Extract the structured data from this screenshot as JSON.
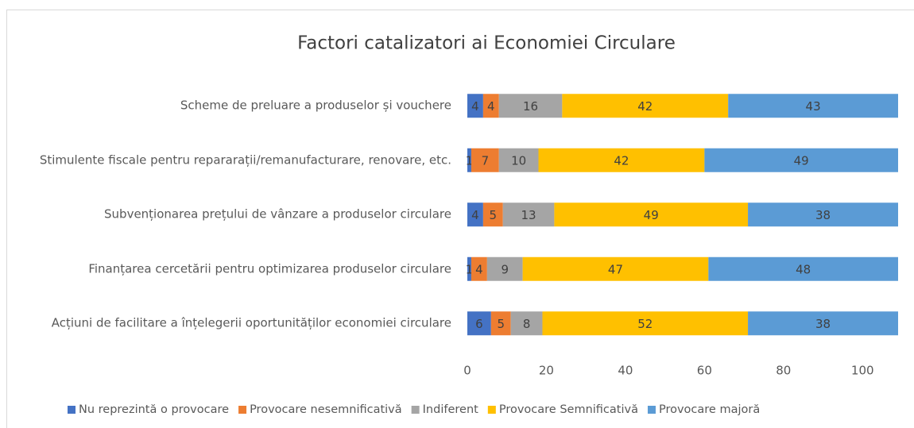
{
  "chart_data": {
    "type": "stacked-bar-horizontal",
    "title": "Factori catalizatori ai  Economiei Circulare",
    "categories": [
      "Scheme de preluare a produselor și vouchere",
      "Stimulente fiscale pentru repararații/remanufacturare, renovare, etc.",
      "Subvenționarea prețului de vânzare a produselor circulare",
      "Finanțarea cercetării pentru optimizarea produselor circulare",
      "Acțiuni de facilitare a înțelegerii oportunităților economiei circulare"
    ],
    "series": [
      {
        "name": "Nu reprezintă o provocare",
        "color": "#4472c4",
        "values": [
          4,
          1,
          4,
          1,
          6
        ]
      },
      {
        "name": "Provocare nesemnificativă",
        "color": "#ed7d31",
        "values": [
          4,
          7,
          5,
          4,
          5
        ]
      },
      {
        "name": "Indiferent",
        "color": "#a5a5a5",
        "values": [
          16,
          10,
          13,
          9,
          8
        ]
      },
      {
        "name": "Provocare Semnificativă",
        "color": "#ffc000",
        "values": [
          42,
          42,
          49,
          47,
          52
        ]
      },
      {
        "name": "Provocare majoră",
        "color": "#5b9bd5",
        "values": [
          43,
          49,
          38,
          48,
          38
        ]
      }
    ],
    "xlim": [
      0,
      109
    ],
    "xticks": [
      0,
      20,
      40,
      60,
      80,
      100
    ],
    "grid": false,
    "legend": "bottom"
  }
}
